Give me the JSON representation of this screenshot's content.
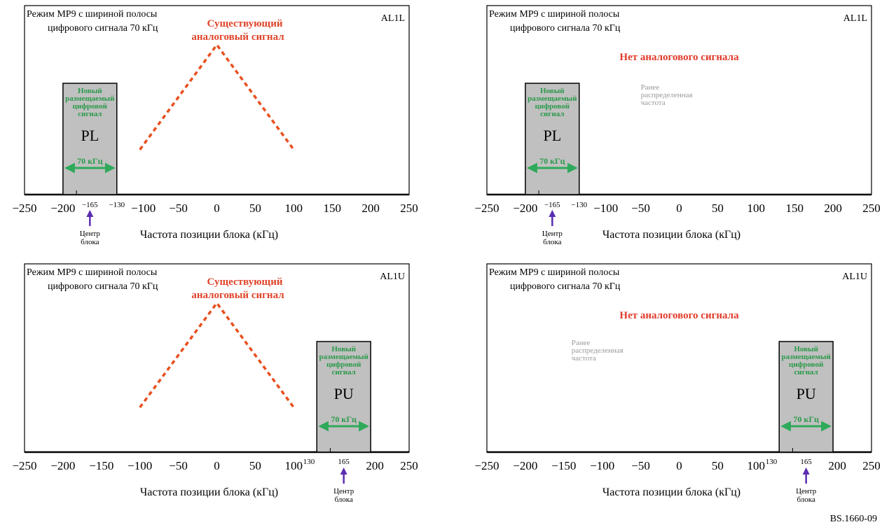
{
  "mode_line1": "Режим MP9 с шириной полосы",
  "mode_line2": "цифрового сигнала 70 кГц",
  "existing_line1": "Существующий",
  "existing_line2": "аналоговый сигнал",
  "no_analog": "Нет аналогового сигнала",
  "prev_line1": "Ранее",
  "prev_line2": "распределенная",
  "prev_line3": "частота",
  "new_line1": "Новый",
  "new_line2": "размещаемый",
  "new_line3": "цифровой",
  "new_line4": "сигнал",
  "bandwidth": "70 кГц",
  "center_line1": "Центр",
  "center_line2": "блока",
  "axis_title": "Частота позиции блока (кГц)",
  "axis_ticks": [
    "−250",
    "−200",
    "−150",
    "−100",
    "−50",
    "0",
    "50",
    "100",
    "150",
    "200",
    "250"
  ],
  "reference": "BS.1660-09",
  "panels": [
    {
      "id": "top-left",
      "tag": "AL1L",
      "has_analog": true,
      "block": "PL",
      "block_range": [
        -200,
        -130
      ],
      "center": -165,
      "edge_labels": [
        "−165",
        "−130"
      ],
      "analog_x": [
        -100,
        0,
        100
      ],
      "analog_level": [
        0.3,
        1.0,
        0.3
      ]
    },
    {
      "id": "top-right",
      "tag": "AL1L",
      "has_analog": false,
      "block": "PL",
      "block_range": [
        -200,
        -130
      ],
      "center": -165,
      "edge_labels": [
        "−165",
        "−130"
      ]
    },
    {
      "id": "bottom-left",
      "tag": "AL1U",
      "has_analog": true,
      "block": "PU",
      "block_range": [
        130,
        200
      ],
      "center": 165,
      "edge_labels": [
        "130",
        "165"
      ],
      "analog_x": [
        -100,
        0,
        100
      ],
      "analog_level": [
        0.3,
        1.0,
        0.3
      ]
    },
    {
      "id": "bottom-right",
      "tag": "AL1U",
      "has_analog": false,
      "block": "PU",
      "block_range": [
        130,
        200
      ],
      "center": 165,
      "edge_labels": [
        "130",
        "165"
      ]
    }
  ]
}
